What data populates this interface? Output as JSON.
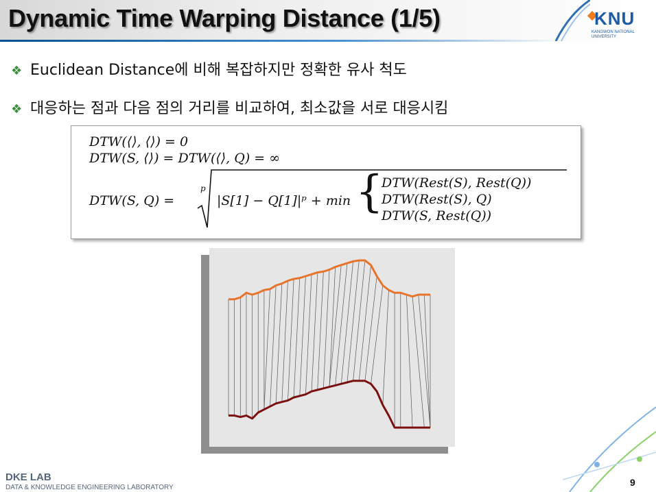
{
  "slide": {
    "title": "Dynamic Time Warping Distance (1/5)",
    "page_number": "9"
  },
  "logo": {
    "name": "KNU",
    "sub": "KANGWON NATIONAL UNIVERSITY"
  },
  "bullets": [
    {
      "icon": "diamond-bullet-icon",
      "text": "Euclidean Distance에 비해 복잡하지만 정확한 유사 척도"
    },
    {
      "icon": "diamond-bullet-icon",
      "text": "대응하는 점과 다음 점의 거리를 비교하여, 최소값을 서로 대응시킴"
    }
  ],
  "formula": {
    "line1": "DTW(⟨⟩, ⟨⟩) = 0",
    "line2": "DTW(S, ⟨⟩) = DTW(⟨⟩, Q) = ∞",
    "lhs": "DTW(S, Q) =",
    "root_index": "p",
    "radicand": "|S[1] − Q[1]|ᵖ + min",
    "cases": [
      "DTW(Rest(S), Rest(Q))",
      "DTW(Rest(S), Q)",
      "DTW(S, Rest(Q))"
    ]
  },
  "figure": {
    "top_color": "#e8732a",
    "bottom_color": "#7a1010",
    "top_series": [
      45,
      45,
      43,
      38,
      40,
      38,
      35,
      34,
      30,
      28,
      25,
      23,
      22,
      20,
      18,
      16,
      15,
      13,
      10,
      8,
      6,
      4,
      3,
      3,
      8,
      20,
      30,
      35,
      38,
      38,
      40,
      42,
      40,
      40,
      40
    ],
    "bottom_series": [
      8,
      8,
      7,
      8,
      6,
      10,
      12,
      14,
      16,
      17,
      18,
      20,
      21,
      22,
      24,
      25,
      26,
      27,
      28,
      29,
      30,
      31,
      31,
      31,
      29,
      24,
      15,
      8,
      0,
      0,
      0,
      0,
      0,
      0,
      0
    ]
  },
  "footer": {
    "lab": "DKE LAB",
    "sub": "DATA & KNOWLEDGE ENGINEERING LABORATORY"
  },
  "colors": {
    "title_underline": "#2f6fb5",
    "bullet_mark": "#3a8f3a",
    "footer_text": "#55657a"
  }
}
